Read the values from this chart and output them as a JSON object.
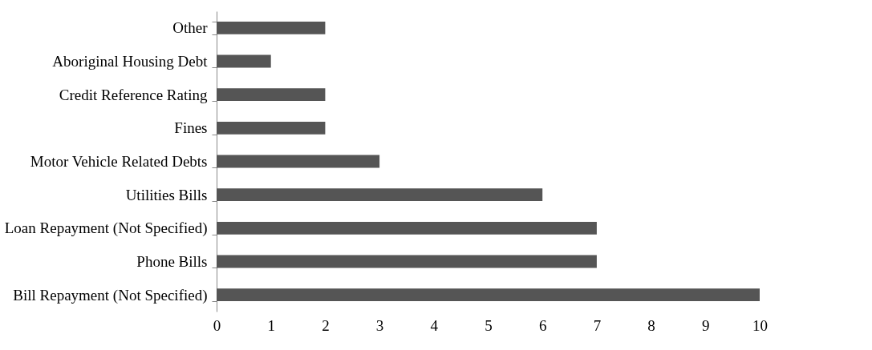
{
  "chart_data": {
    "type": "bar",
    "orientation": "horizontal",
    "categories": [
      "Other",
      "Aboriginal Housing Debt",
      "Credit Reference Rating",
      "Fines",
      "Motor Vehicle Related Debts",
      "Utilities Bills",
      "Loan Repayment (Not Specified)",
      "Phone Bills",
      "Bill Repayment (Not Specified)"
    ],
    "values": [
      2,
      1,
      2,
      2,
      3,
      6,
      7,
      7,
      10
    ],
    "color": "#555555",
    "xlim": [
      0,
      10
    ],
    "xticks": [
      0,
      1,
      2,
      3,
      4,
      5,
      6,
      7,
      8,
      9,
      10
    ],
    "grid": false
  }
}
